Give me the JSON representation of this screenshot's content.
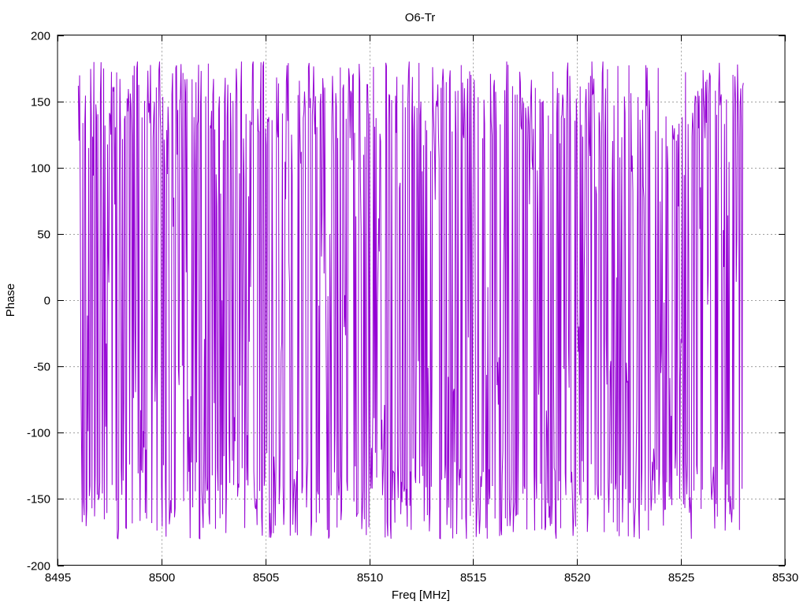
{
  "chart_data": {
    "type": "line",
    "title": "O6-Tr",
    "xlabel": "Freq [MHz]",
    "ylabel": "Phase",
    "xlim": [
      8495,
      8530
    ],
    "ylim": [
      -200,
      200
    ],
    "xticks": [
      8495,
      8500,
      8505,
      8510,
      8515,
      8520,
      8525,
      8530
    ],
    "yticks": [
      -200,
      -150,
      -100,
      -50,
      0,
      50,
      100,
      150,
      200
    ],
    "grid": true,
    "series_color": "#9400d3",
    "series": [
      {
        "x_start": 8496.0,
        "x_end": 8528.0,
        "points": 1024,
        "value_range": [
          -180,
          180
        ],
        "description": "Phase vs frequency; rapidly wrapping values filling roughly -180 to 180 degrees"
      }
    ]
  }
}
